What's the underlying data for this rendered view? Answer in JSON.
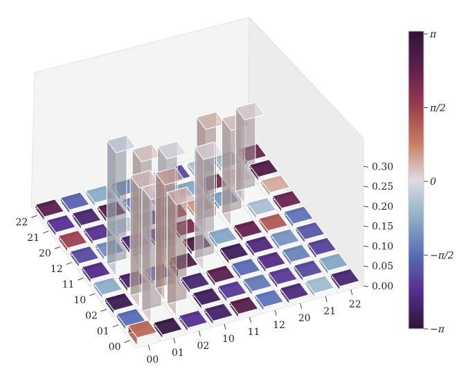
{
  "chart_data": {
    "type": "bar3d",
    "title": "",
    "x_categories": [
      "00",
      "01",
      "02",
      "10",
      "11",
      "12",
      "20",
      "21",
      "22"
    ],
    "y_categories": [
      "00",
      "01",
      "02",
      "10",
      "11",
      "12",
      "20",
      "21",
      "22"
    ],
    "z_ticks": [
      "0.00",
      "0.05",
      "0.10",
      "0.15",
      "0.20",
      "0.25",
      "0.30"
    ],
    "zlim": [
      0,
      0.33
    ],
    "colorbar": {
      "label": "",
      "ticks": [
        "π",
        "π/2",
        "0",
        "−π/2",
        "−π"
      ],
      "tick_values": [
        3.1416,
        1.5708,
        0,
        -1.5708,
        -3.1416
      ],
      "colormap": "twilight_shifted"
    },
    "bars": [
      {
        "x": "00",
        "y": "00",
        "height": 0.02,
        "phase": 1.0
      },
      {
        "x": "00",
        "y": "01",
        "height": 0.01,
        "phase": -3.0
      },
      {
        "x": "00",
        "y": "02",
        "height": 0.01,
        "phase": -2.3
      },
      {
        "x": "00",
        "y": "10",
        "height": 0.01,
        "phase": -2.7
      },
      {
        "x": "00",
        "y": "11",
        "height": 0.01,
        "phase": 2.5
      },
      {
        "x": "00",
        "y": "12",
        "height": 0.01,
        "phase": -1.5
      },
      {
        "x": "00",
        "y": "20",
        "height": 0.01,
        "phase": -2.5
      },
      {
        "x": "00",
        "y": "21",
        "height": 0.01,
        "phase": -0.6
      },
      {
        "x": "00",
        "y": "22",
        "height": 0.01,
        "phase": -2.6
      },
      {
        "x": "01",
        "y": "00",
        "height": 0.01,
        "phase": -1.6
      },
      {
        "x": "01",
        "y": "01",
        "height": 0.31,
        "phase": 0.1
      },
      {
        "x": "01",
        "y": "02",
        "height": 0.28,
        "phase": 0.3
      },
      {
        "x": "01",
        "y": "10",
        "height": 0.01,
        "phase": -2.8
      },
      {
        "x": "01",
        "y": "11",
        "height": 0.01,
        "phase": -2.2
      },
      {
        "x": "01",
        "y": "12",
        "height": 0.01,
        "phase": -1.4
      },
      {
        "x": "01",
        "y": "20",
        "height": 0.01,
        "phase": -2.2
      },
      {
        "x": "01",
        "y": "21",
        "height": 0.01,
        "phase": -2.0
      },
      {
        "x": "01",
        "y": "22",
        "height": 0.01,
        "phase": -0.9
      },
      {
        "x": "02",
        "y": "00",
        "height": 0.01,
        "phase": -2.9
      },
      {
        "x": "02",
        "y": "01",
        "height": 0.3,
        "phase": 0.2
      },
      {
        "x": "02",
        "y": "02",
        "height": 0.29,
        "phase": 0.4
      },
      {
        "x": "02",
        "y": "10",
        "height": 0.01,
        "phase": -2.6
      },
      {
        "x": "02",
        "y": "11",
        "height": 0.01,
        "phase": 2.4
      },
      {
        "x": "02",
        "y": "12",
        "height": 0.01,
        "phase": -1.6
      },
      {
        "x": "02",
        "y": "20",
        "height": 0.01,
        "phase": -2.4
      },
      {
        "x": "02",
        "y": "21",
        "height": 0.01,
        "phase": -1.3
      },
      {
        "x": "02",
        "y": "22",
        "height": 0.01,
        "phase": -2.1
      },
      {
        "x": "10",
        "y": "00",
        "height": 0.01,
        "phase": -0.8
      },
      {
        "x": "10",
        "y": "01",
        "height": 0.01,
        "phase": -2.7
      },
      {
        "x": "10",
        "y": "02",
        "height": 0.01,
        "phase": -1.7
      },
      {
        "x": "10",
        "y": "10",
        "height": 0.02,
        "phase": 2.6
      },
      {
        "x": "10",
        "y": "11",
        "height": 0.28,
        "phase": 0.0
      },
      {
        "x": "10",
        "y": "12",
        "height": 0.01,
        "phase": -2.8
      },
      {
        "x": "10",
        "y": "20",
        "height": 0.01,
        "phase": -2.5
      },
      {
        "x": "10",
        "y": "21",
        "height": 0.01,
        "phase": -1.1
      },
      {
        "x": "10",
        "y": "22",
        "height": 0.01,
        "phase": -1.8
      },
      {
        "x": "11",
        "y": "00",
        "height": 0.01,
        "phase": -2.4
      },
      {
        "x": "11",
        "y": "01",
        "height": 0.31,
        "phase": -0.3
      },
      {
        "x": "11",
        "y": "02",
        "height": 0.27,
        "phase": 0.2
      },
      {
        "x": "11",
        "y": "10",
        "height": 0.26,
        "phase": -0.1
      },
      {
        "x": "11",
        "y": "11",
        "height": 0.01,
        "phase": 2.7
      },
      {
        "x": "11",
        "y": "12",
        "height": 0.01,
        "phase": -0.9
      },
      {
        "x": "11",
        "y": "20",
        "height": 0.01,
        "phase": 2.3
      },
      {
        "x": "11",
        "y": "21",
        "height": 0.01,
        "phase": 1.2
      },
      {
        "x": "11",
        "y": "22",
        "height": 0.01,
        "phase": -1.5
      },
      {
        "x": "12",
        "y": "00",
        "height": 0.01,
        "phase": -2.0
      },
      {
        "x": "12",
        "y": "01",
        "height": 0.01,
        "phase": -1.2
      },
      {
        "x": "12",
        "y": "02",
        "height": 0.01,
        "phase": -2.6
      },
      {
        "x": "12",
        "y": "10",
        "height": 0.01,
        "phase": -2.3
      },
      {
        "x": "12",
        "y": "11",
        "height": 0.01,
        "phase": 2.0
      },
      {
        "x": "12",
        "y": "12",
        "height": 0.26,
        "phase": 0.3
      },
      {
        "x": "12",
        "y": "20",
        "height": 0.24,
        "phase": 0.2
      },
      {
        "x": "12",
        "y": "21",
        "height": 0.01,
        "phase": -0.5
      },
      {
        "x": "12",
        "y": "22",
        "height": 0.01,
        "phase": 2.2
      },
      {
        "x": "20",
        "y": "00",
        "height": 0.01,
        "phase": 1.5
      },
      {
        "x": "20",
        "y": "01",
        "height": 0.01,
        "phase": -2.3
      },
      {
        "x": "20",
        "y": "02",
        "height": 0.01,
        "phase": -0.4
      },
      {
        "x": "20",
        "y": "10",
        "height": 0.01,
        "phase": -2.4
      },
      {
        "x": "20",
        "y": "11",
        "height": 0.01,
        "phase": 1.6
      },
      {
        "x": "20",
        "y": "12",
        "height": 0.01,
        "phase": 0.6
      },
      {
        "x": "20",
        "y": "20",
        "height": 0.01,
        "phase": -1.0
      },
      {
        "x": "20",
        "y": "21",
        "height": 0.21,
        "phase": 0.1
      },
      {
        "x": "20",
        "y": "22",
        "height": 0.01,
        "phase": 0.4
      },
      {
        "x": "21",
        "y": "00",
        "height": 0.01,
        "phase": -2.3
      },
      {
        "x": "21",
        "y": "01",
        "height": 0.01,
        "phase": -2.6
      },
      {
        "x": "21",
        "y": "02",
        "height": 0.01,
        "phase": 2.5
      },
      {
        "x": "21",
        "y": "10",
        "height": 0.01,
        "phase": -1.4
      },
      {
        "x": "21",
        "y": "11",
        "height": 0.01,
        "phase": -1.0
      },
      {
        "x": "21",
        "y": "12",
        "height": 0.01,
        "phase": -0.9
      },
      {
        "x": "21",
        "y": "20",
        "height": 0.01,
        "phase": 2.1
      },
      {
        "x": "21",
        "y": "21",
        "height": 0.01,
        "phase": 0.1
      },
      {
        "x": "21",
        "y": "22",
        "height": 0.01,
        "phase": 2.6
      },
      {
        "x": "22",
        "y": "00",
        "height": 0.01,
        "phase": 2.4
      },
      {
        "x": "22",
        "y": "01",
        "height": 0.01,
        "phase": -1.7
      },
      {
        "x": "22",
        "y": "02",
        "height": 0.01,
        "phase": -0.8
      },
      {
        "x": "22",
        "y": "10",
        "height": 0.01,
        "phase": -1.3
      },
      {
        "x": "22",
        "y": "11",
        "height": 0.01,
        "phase": -0.2
      },
      {
        "x": "22",
        "y": "12",
        "height": 0.01,
        "phase": -2.0
      },
      {
        "x": "22",
        "y": "20",
        "height": 0.01,
        "phase": -0.5
      },
      {
        "x": "22",
        "y": "21",
        "height": 0.01,
        "phase": -0.6
      },
      {
        "x": "22",
        "y": "22",
        "height": 0.01,
        "phase": 2.2
      }
    ]
  }
}
